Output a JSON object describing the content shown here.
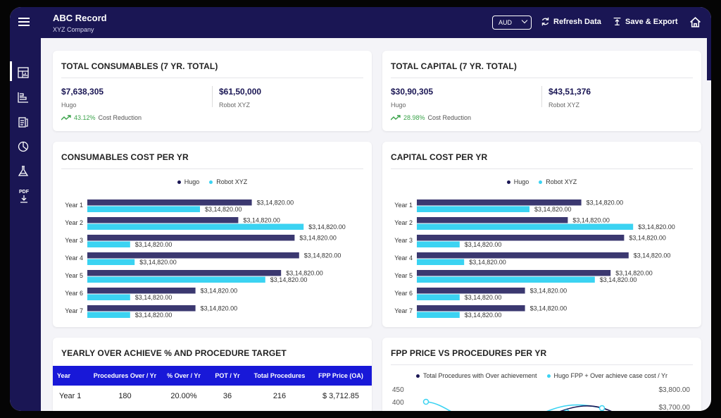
{
  "app": {
    "title": "ABC Record",
    "subtitle": "XYZ Company"
  },
  "toolbar": {
    "currency": "AUD",
    "refresh_label": "Refresh Data",
    "save_label": "Save & Export"
  },
  "sidebar": {
    "items": [
      {
        "icon": "dashboard-icon",
        "active": true
      },
      {
        "icon": "bar-chart-icon"
      },
      {
        "icon": "clipboard-icon"
      },
      {
        "icon": "pie-chart-icon"
      },
      {
        "icon": "flask-icon"
      },
      {
        "icon": "pdf-download-icon",
        "text": "PDF"
      }
    ]
  },
  "colors": {
    "navy": "#1a1654",
    "series_dark": "#3b3870",
    "series_light": "#3bd3f2",
    "table_header": "#1818d8",
    "trend_green": "#3aa34a"
  },
  "consumables_total": {
    "title": "TOTAL CONSUMABLES (7 YR. TOTAL)",
    "a_value": "$7,638,305",
    "a_label": "Hugo",
    "b_value": "$61,50,000",
    "b_label": "Robot XYZ",
    "trend_pct": "43.12%",
    "trend_text": "Cost Reduction"
  },
  "capital_total": {
    "title": "TOTAL CAPITAL (7 YR. TOTAL)",
    "a_value": "$30,90,305",
    "a_label": "Hugo",
    "b_value": "$43,51,376",
    "b_label": "Robot XYZ",
    "trend_pct": "28.98%",
    "trend_text": "Cost Reduction"
  },
  "consumables_chart": {
    "title": "CONSUMABLES COST PER YR",
    "legend": [
      "Hugo",
      "Robot XYZ"
    ]
  },
  "capital_chart": {
    "title": "CAPITAL COST PER YR",
    "legend": [
      "Hugo",
      "Robot XYZ"
    ]
  },
  "procedures_table": {
    "title": "YEARLY OVER ACHIEVE % AND PROCEDURE TARGET",
    "headers": [
      "Year",
      "Procedures Over / Yr",
      "% Over / Yr",
      "POT / Yr",
      "Total Procedures",
      "FPP Price (OA)"
    ],
    "rows": [
      [
        "Year 1",
        "180",
        "20.00%",
        "36",
        "216",
        "$ 3,712.85"
      ]
    ]
  },
  "fpp_chart": {
    "title": "FPP PRICE VS PROCEDURES PER YR",
    "legend": [
      "Total Procedures with Over achievement",
      "Hugo FPP + Over achieve case cost / Yr"
    ],
    "left_ticks": [
      "450",
      "400"
    ],
    "right_ticks": [
      "$3,800.00",
      "$3,700.00"
    ]
  },
  "chart_data": [
    {
      "type": "bar",
      "orientation": "horizontal",
      "categories": [
        "Year 1",
        "Year 2",
        "Year 3",
        "Year 4",
        "Year 5",
        "Year 6",
        "Year 7"
      ],
      "series": [
        {
          "name": "Hugo",
          "values": [
            0.73,
            0.67,
            0.92,
            0.94,
            0.86,
            0.48,
            0.48
          ],
          "labels": [
            "$3,14,820.00",
            "$3,14,820.00",
            "$3,14,820.00",
            "$3,14,820.00",
            "$3,14,820.00",
            "$3,14,820.00",
            "$3,14,820.00"
          ]
        },
        {
          "name": "Robot XYZ",
          "values": [
            0.5,
            0.96,
            0.19,
            0.21,
            0.79,
            0.19,
            0.19
          ],
          "labels": [
            "$3,14,820.00",
            "$3,14,820.00",
            "$3,14,820.00",
            "$3,14,820.00",
            "$3,14,820.00",
            "$3,14,820.00",
            "$3,14,820.00"
          ]
        }
      ]
    },
    {
      "type": "bar",
      "orientation": "horizontal",
      "categories": [
        "Year 1",
        "Year 2",
        "Year 3",
        "Year 4",
        "Year 5",
        "Year 6",
        "Year 7"
      ],
      "series": [
        {
          "name": "Hugo",
          "values": [
            0.73,
            0.67,
            0.92,
            0.94,
            0.86,
            0.48,
            0.48
          ],
          "labels": [
            "$3,14,820.00",
            "$3,14,820.00",
            "$3,14,820.00",
            "$3,14,820.00",
            "$3,14,820.00",
            "$3,14,820.00",
            "$3,14,820.00"
          ]
        },
        {
          "name": "Robot XYZ",
          "values": [
            0.5,
            0.96,
            0.19,
            0.21,
            0.79,
            0.19,
            0.19
          ],
          "labels": [
            "$3,14,820.00",
            "$3,14,820.00",
            "$3,14,820.00",
            "$3,14,820.00",
            "$3,14,820.00",
            "$3,14,820.00",
            "$3,14,820.00"
          ]
        }
      ]
    }
  ]
}
